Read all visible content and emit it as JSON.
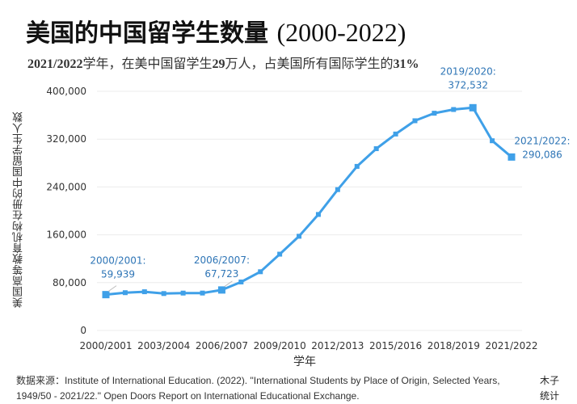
{
  "header": {
    "title_cn": "美国的中国留学生数量",
    "title_years": "(2000-2022)",
    "subtitle_parts": [
      {
        "text": "2021/2022",
        "bold": true
      },
      {
        "text": "学年，在美中国留学生",
        "bold": false
      },
      {
        "text": "29",
        "bold": true
      },
      {
        "text": "万人，占美国所有国际学生的",
        "bold": false
      },
      {
        "text": "31%",
        "bold": true
      }
    ]
  },
  "axes": {
    "ylabel": "美国高等教育机构在册的中国留学生人数",
    "xlabel": "学年"
  },
  "footer": {
    "source": "数据来源：Institute of International Education. (2022). \"International Students by Place of Origin, Selected Years, 1949/50 - 2021/22.\" Open Doors Report on International Educational Exchange.",
    "brand_line1": "木子",
    "brand_line2": "统计"
  },
  "colors": {
    "line": "#3fa0e8",
    "annotation": "#2e75b6",
    "grid": "#ececec"
  },
  "chart_data": {
    "type": "line",
    "title": "美国的中国留学生数量 (2000-2022)",
    "subtitle": "2021/2022学年，在美中国留学生29万人，占美国所有国际学生的31%",
    "xlabel": "学年",
    "ylabel": "美国高等教育机构在册的中国留学生人数",
    "ylim": [
      0,
      400000
    ],
    "yticks": [
      0,
      80000,
      160000,
      240000,
      320000,
      400000
    ],
    "ytick_labels": [
      "0",
      "80,000",
      "160,000",
      "240,000",
      "320,000",
      "400,000"
    ],
    "xtick_labels": [
      "2000/2001",
      "2003/2004",
      "2006/2007",
      "2009/2010",
      "2012/2013",
      "2015/2016",
      "2018/2019",
      "2021/2022"
    ],
    "grid": true,
    "legend": null,
    "x": [
      "2000/2001",
      "2001/2002",
      "2002/2003",
      "2003/2004",
      "2004/2005",
      "2005/2006",
      "2006/2007",
      "2007/2008",
      "2008/2009",
      "2009/2010",
      "2010/2011",
      "2011/2012",
      "2012/2013",
      "2013/2014",
      "2014/2015",
      "2015/2016",
      "2016/2017",
      "2017/2018",
      "2018/2019",
      "2019/2020",
      "2020/2021",
      "2021/2022"
    ],
    "series": [
      {
        "name": "中国留学生人数",
        "values": [
          59939,
          63211,
          64757,
          61765,
          62523,
          62582,
          67723,
          81127,
          98235,
          127628,
          157558,
          194029,
          235597,
          274439,
          304040,
          328547,
          350755,
          363341,
          369548,
          372532,
          317299,
          290086
        ]
      }
    ],
    "annotations": [
      {
        "index": 0,
        "label": "2000/2001:",
        "value": "59,939"
      },
      {
        "index": 6,
        "label": "2006/2007:",
        "value": "67,723"
      },
      {
        "index": 19,
        "label": "2019/2020:",
        "value": "372,532"
      },
      {
        "index": 21,
        "label": "2021/2022:",
        "value": "290,086"
      }
    ]
  }
}
